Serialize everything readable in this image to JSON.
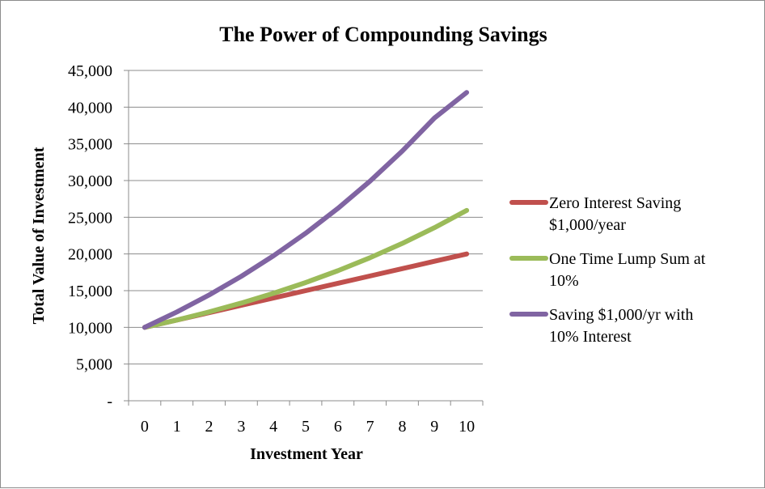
{
  "chart_data": {
    "type": "line",
    "title": "The Power of Compounding Savings",
    "xlabel": "Investment Year",
    "ylabel": "Total Value of Investment",
    "x": [
      0,
      1,
      2,
      3,
      4,
      5,
      6,
      7,
      8,
      9,
      10
    ],
    "x_tick_labels": [
      "0",
      "1",
      "2",
      "3",
      "4",
      "5",
      "6",
      "7",
      "8",
      "9",
      "10"
    ],
    "ylim": [
      0,
      45000
    ],
    "y_ticks": [
      0,
      5000,
      10000,
      15000,
      20000,
      25000,
      30000,
      35000,
      40000,
      45000
    ],
    "y_tick_labels": [
      "-",
      "5,000",
      "10,000",
      "15,000",
      "20,000",
      "25,000",
      "30,000",
      "35,000",
      "40,000",
      "45,000"
    ],
    "grid": true,
    "legend_position": "right",
    "series": [
      {
        "name": "Zero Interest Saving $1,000/year",
        "legend_lines": [
          "Zero Interest Saving",
          "$1,000/year"
        ],
        "color": "#c0504d",
        "values": [
          10000,
          11000,
          12000,
          13000,
          14000,
          15000,
          16000,
          17000,
          18000,
          19000,
          20000
        ]
      },
      {
        "name": "One Time Lump Sum at 10%",
        "legend_lines": [
          "One Time Lump Sum at",
          "10%"
        ],
        "color": "#9bbb59",
        "values": [
          10000,
          11000,
          12100,
          13310,
          14641,
          16105,
          17716,
          19487,
          21436,
          23579,
          25937
        ]
      },
      {
        "name": "Saving $1,000/yr with 10% Interest",
        "legend_lines": [
          "Saving $1,000/yr with",
          "10% Interest"
        ],
        "color": "#8064a2",
        "values": [
          10000,
          12100,
          14410,
          16951,
          19747,
          22821,
          26203,
          29924,
          34016,
          38518,
          42000
        ]
      }
    ]
  }
}
